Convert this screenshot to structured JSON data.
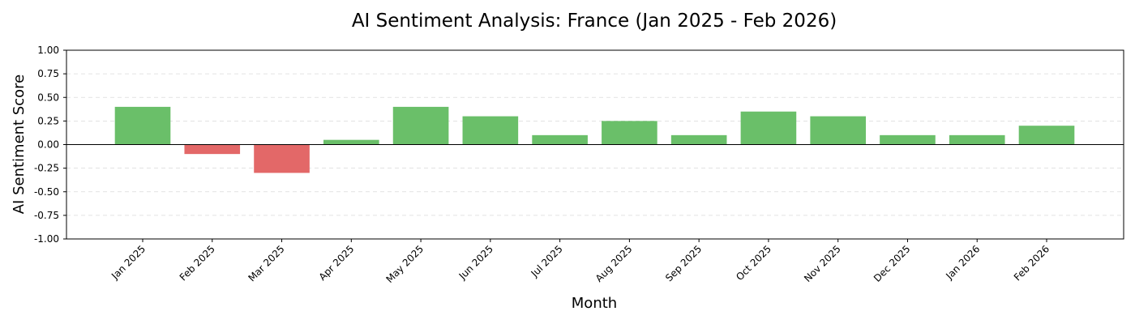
{
  "chart_data": {
    "type": "bar",
    "title": "AI Sentiment Analysis: France (Jan 2025 - Feb 2026)",
    "xlabel": "Month",
    "ylabel": "AI Sentiment Score",
    "categories": [
      "Jan 2025",
      "Feb 2025",
      "Mar 2025",
      "Apr 2025",
      "May 2025",
      "Jun 2025",
      "Jul 2025",
      "Aug 2025",
      "Sep 2025",
      "Oct 2025",
      "Nov 2025",
      "Dec 2025",
      "Jan 2026",
      "Feb 2026"
    ],
    "values": [
      0.4,
      -0.1,
      -0.3,
      0.05,
      0.4,
      0.3,
      0.1,
      0.25,
      0.1,
      0.35,
      0.3,
      0.1,
      0.1,
      0.2
    ],
    "ylim": [
      -1.0,
      1.0
    ],
    "yticks": [
      "-1.00",
      "-0.75",
      "-0.50",
      "-0.25",
      "0.00",
      "0.25",
      "0.50",
      "0.75",
      "1.00"
    ],
    "grid": "horizontal dashed",
    "colors": {
      "positive": "#6abf69",
      "negative": "#e36868"
    }
  }
}
